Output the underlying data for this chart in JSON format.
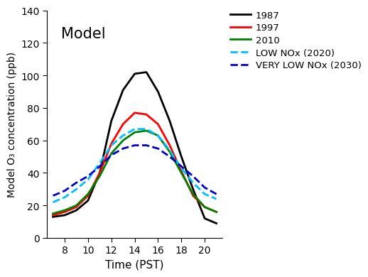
{
  "xlabel": "Time (PST)",
  "ylabel": "Model O₃ concentration (ppb)",
  "xlim": [
    6.5,
    21.5
  ],
  "ylim": [
    0,
    140
  ],
  "xticks": [
    8,
    10,
    12,
    14,
    16,
    18,
    20
  ],
  "yticks": [
    0,
    20,
    40,
    60,
    80,
    100,
    120,
    140
  ],
  "series": [
    {
      "label": "1987",
      "color": "#000000",
      "linestyle": "solid",
      "linewidth": 2.0,
      "x": [
        7,
        8,
        9,
        10,
        11,
        12,
        13,
        14,
        15,
        16,
        17,
        18,
        19,
        20,
        21
      ],
      "y": [
        13,
        14,
        17,
        23,
        40,
        72,
        91,
        101,
        102,
        90,
        72,
        50,
        30,
        12,
        9
      ]
    },
    {
      "label": "1997",
      "color": "#ff0000",
      "linestyle": "solid",
      "linewidth": 2.0,
      "x": [
        7,
        8,
        9,
        10,
        11,
        12,
        13,
        14,
        15,
        16,
        17,
        18,
        19,
        20,
        21
      ],
      "y": [
        14,
        16,
        19,
        26,
        40,
        58,
        70,
        77,
        76,
        70,
        57,
        41,
        26,
        19,
        16
      ]
    },
    {
      "label": "2010",
      "color": "#008000",
      "linestyle": "solid",
      "linewidth": 2.0,
      "x": [
        7,
        8,
        9,
        10,
        11,
        12,
        13,
        14,
        15,
        16,
        17,
        18,
        19,
        20,
        21
      ],
      "y": [
        15,
        17,
        20,
        27,
        38,
        52,
        60,
        65,
        66,
        63,
        53,
        40,
        27,
        19,
        16
      ]
    },
    {
      "label": "LOW NOx (2020)",
      "color": "#00bfff",
      "linestyle": "dashed",
      "linewidth": 2.0,
      "x": [
        7,
        8,
        9,
        10,
        11,
        12,
        13,
        14,
        15,
        16,
        17,
        18,
        19,
        20,
        21
      ],
      "y": [
        22,
        25,
        30,
        36,
        46,
        57,
        63,
        67,
        67,
        63,
        54,
        43,
        34,
        27,
        24
      ]
    },
    {
      "label": "VERY LOW NOx (2030)",
      "color": "#0000cd",
      "linestyle": "dashed",
      "linewidth": 2.0,
      "x": [
        7,
        8,
        9,
        10,
        11,
        12,
        13,
        14,
        15,
        16,
        17,
        18,
        19,
        20,
        21
      ],
      "y": [
        26,
        29,
        34,
        38,
        44,
        51,
        55,
        57,
        57,
        55,
        50,
        44,
        38,
        31,
        27
      ]
    }
  ],
  "legend_fontsize": 9.5,
  "annotation_text": "Model",
  "annotation_fontsize": 15,
  "background_color": "#ffffff"
}
